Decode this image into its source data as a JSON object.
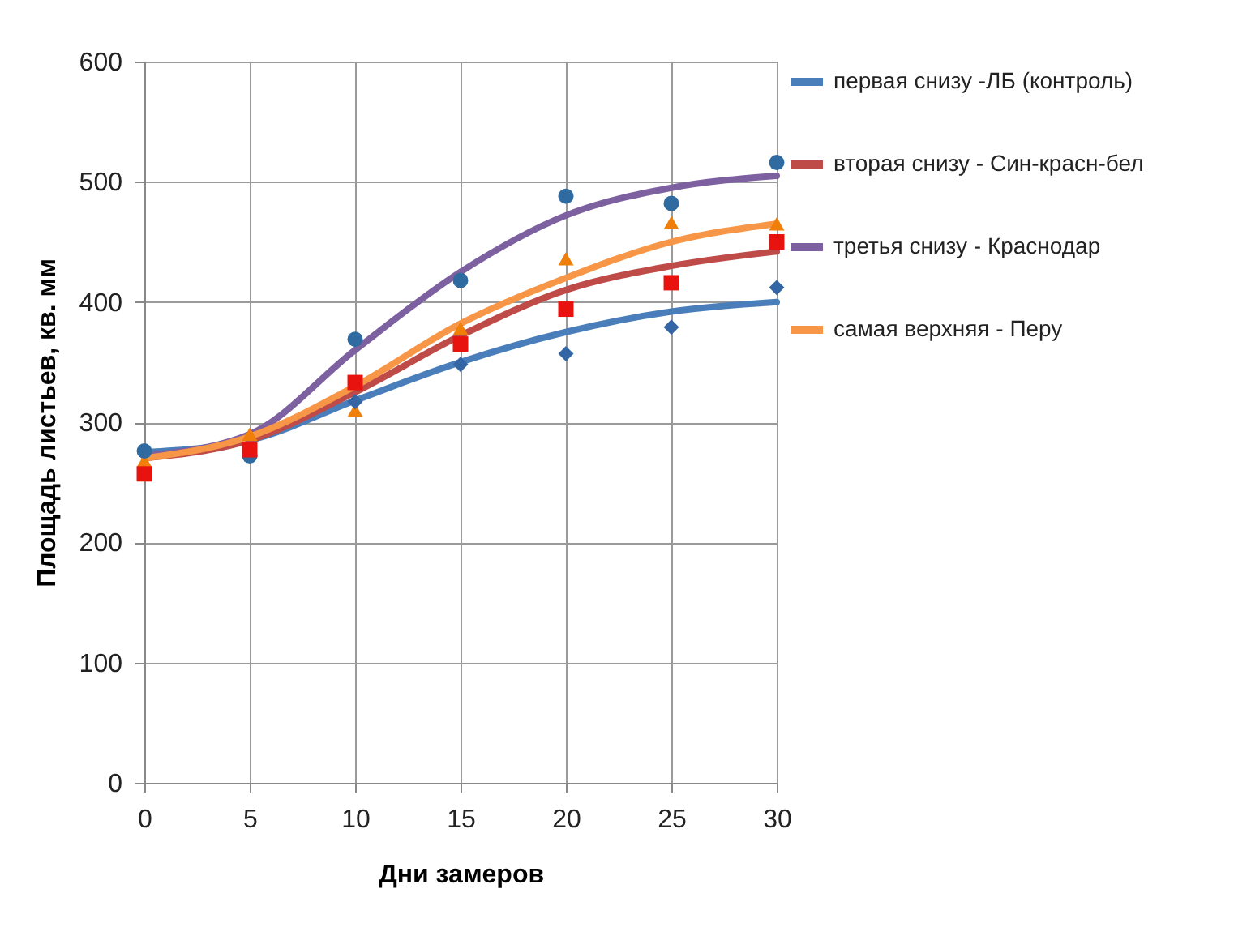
{
  "chart_data": {
    "type": "line",
    "xlabel": "Дни замеров",
    "ylabel": "Площадь листьев, кв. мм",
    "x": [
      0,
      5,
      10,
      15,
      20,
      25,
      30
    ],
    "xlim": [
      0,
      30
    ],
    "xticks": [
      0,
      5,
      10,
      15,
      20,
      25,
      30
    ],
    "ylim": [
      0,
      600
    ],
    "yticks": [
      0,
      100,
      200,
      300,
      400,
      500,
      600
    ],
    "grid": true,
    "legend": "right",
    "line_style": "solid",
    "series": [
      {
        "name": "первая снизу -ЛБ (контроль)",
        "marker": "none",
        "color": "#4a7ebb",
        "values": [
          275,
          285,
          318,
          350,
          375,
          392,
          400
        ]
      },
      {
        "name": "вторая  снизу - Син-красн-бел",
        "marker": "none",
        "color": "#be4b48",
        "values": [
          270,
          285,
          325,
          372,
          410,
          430,
          442
        ]
      },
      {
        "name": "третья  снизу - Краснодар",
        "marker": "none",
        "color": "#7d60a0",
        "values": [
          272,
          290,
          360,
          425,
          472,
          495,
          505
        ]
      },
      {
        "name": "самая  верхняя - Перу",
        "marker": "none",
        "color": "#f79646",
        "values": [
          270,
          288,
          330,
          382,
          420,
          450,
          465
        ]
      },
      {
        "type": "scatter",
        "marker": "diamond",
        "color": "#3465a4",
        "values": [
          null,
          null,
          317,
          348,
          357,
          379,
          412
        ]
      },
      {
        "type": "scatter",
        "marker": "square",
        "color": "#e8120e",
        "values": [
          257,
          277,
          333,
          365,
          394,
          416,
          450
        ]
      },
      {
        "type": "scatter",
        "marker": "circle",
        "color": "#2f6aa0",
        "values": [
          276,
          272,
          369,
          418,
          488,
          482,
          516
        ]
      },
      {
        "type": "scatter",
        "marker": "triangle",
        "color": "#f07f09",
        "values": [
          268,
          290,
          310,
          378,
          436,
          466,
          465
        ]
      }
    ]
  }
}
